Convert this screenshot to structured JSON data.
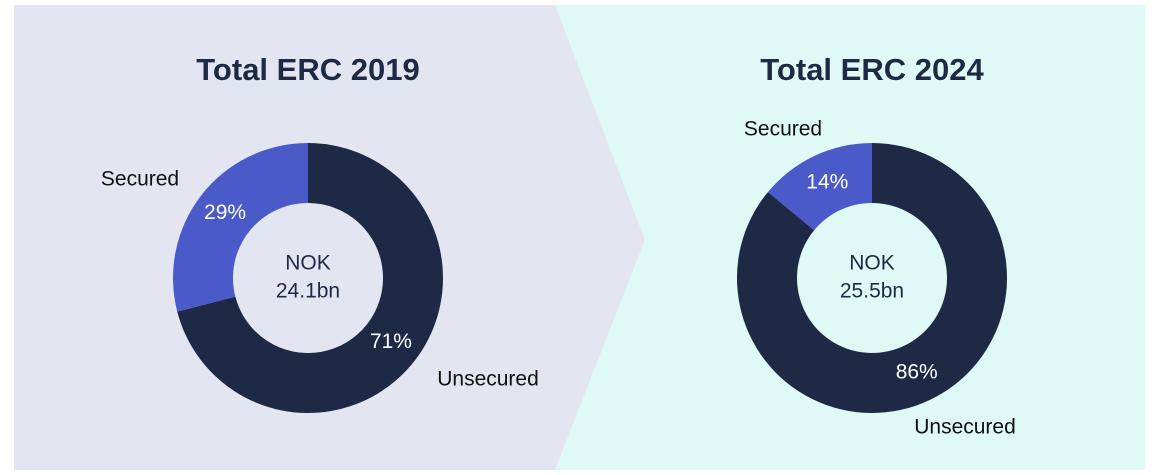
{
  "chart_data": [
    {
      "type": "pie",
      "donut": true,
      "title": "Total ERC 2019",
      "categories": [
        "Unsecured",
        "Secured"
      ],
      "values": [
        71,
        29
      ],
      "value_labels": [
        "71%",
        "29%"
      ],
      "colors": [
        "#1e2a45",
        "#4a5bc9"
      ],
      "center_label": [
        "NOK",
        "24.1bn"
      ]
    },
    {
      "type": "pie",
      "donut": true,
      "title": "Total ERC 2024",
      "categories": [
        "Unsecured",
        "Secured"
      ],
      "values": [
        86,
        14
      ],
      "value_labels": [
        "86%",
        "14%"
      ],
      "colors": [
        "#1e2a45",
        "#4a5bc9"
      ],
      "center_label": [
        "NOK",
        "25.5bn"
      ]
    }
  ]
}
